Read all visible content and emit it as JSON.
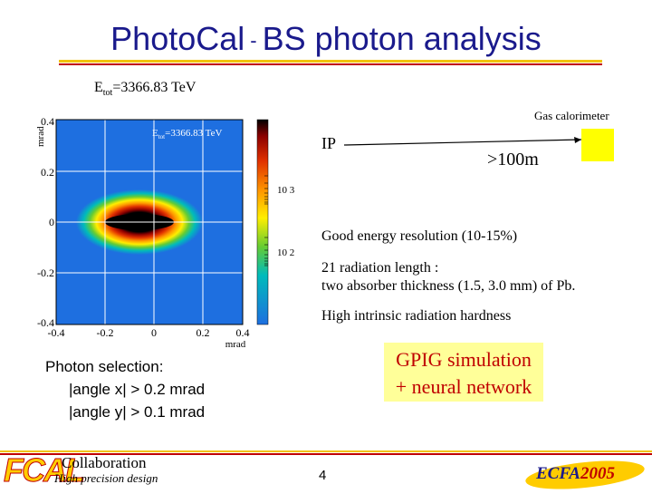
{
  "title": {
    "part1": "PhotoCal",
    "dash": "-",
    "part2": "BS photon analysis"
  },
  "energy_label": {
    "prefix": "E",
    "sub": "tot",
    "value": "=3366.83 TeV"
  },
  "histogram": {
    "inner_label_prefix": "E",
    "inner_label_sub": "tot",
    "inner_label_value": "=3366.83 TeV",
    "y_axis_title": "mrad",
    "x_axis_title": "mrad",
    "y_ticks": [
      "0.4",
      "0.2",
      "0",
      "-0.2",
      "-0.4"
    ],
    "x_ticks": [
      "-0.4",
      "-0.2",
      "0",
      "0.2",
      "0.4"
    ],
    "colorbar_labels": [
      "10 3",
      "10 2"
    ]
  },
  "diagram": {
    "gas_calorimeter": "Gas calorimeter",
    "ip": "IP",
    "distance": ">100m"
  },
  "features": [
    "Good energy resolution (10-15%)",
    "21 radiation length :",
    "two absorber thickness (1.5, 3.0 mm) of Pb.",
    "High intrinsic radiation hardness"
  ],
  "photon_selection": {
    "heading": "Photon selection:",
    "lines": [
      "|angle x| > 0.2 mrad",
      "|angle y| > 0.1 mrad"
    ]
  },
  "simulation_box": [
    "GPIG simulation",
    "+ neural network"
  ],
  "footer": {
    "logo": "FCAL",
    "collaboration": "Collaboration",
    "subtitle": "High precision design",
    "page_number": "4",
    "conference_prefix": "ECFA",
    "conference_year": "2005"
  },
  "colors": {
    "title": "#1a1a8c",
    "accent_yellow": "#f2c200",
    "accent_red": "#c00000"
  }
}
